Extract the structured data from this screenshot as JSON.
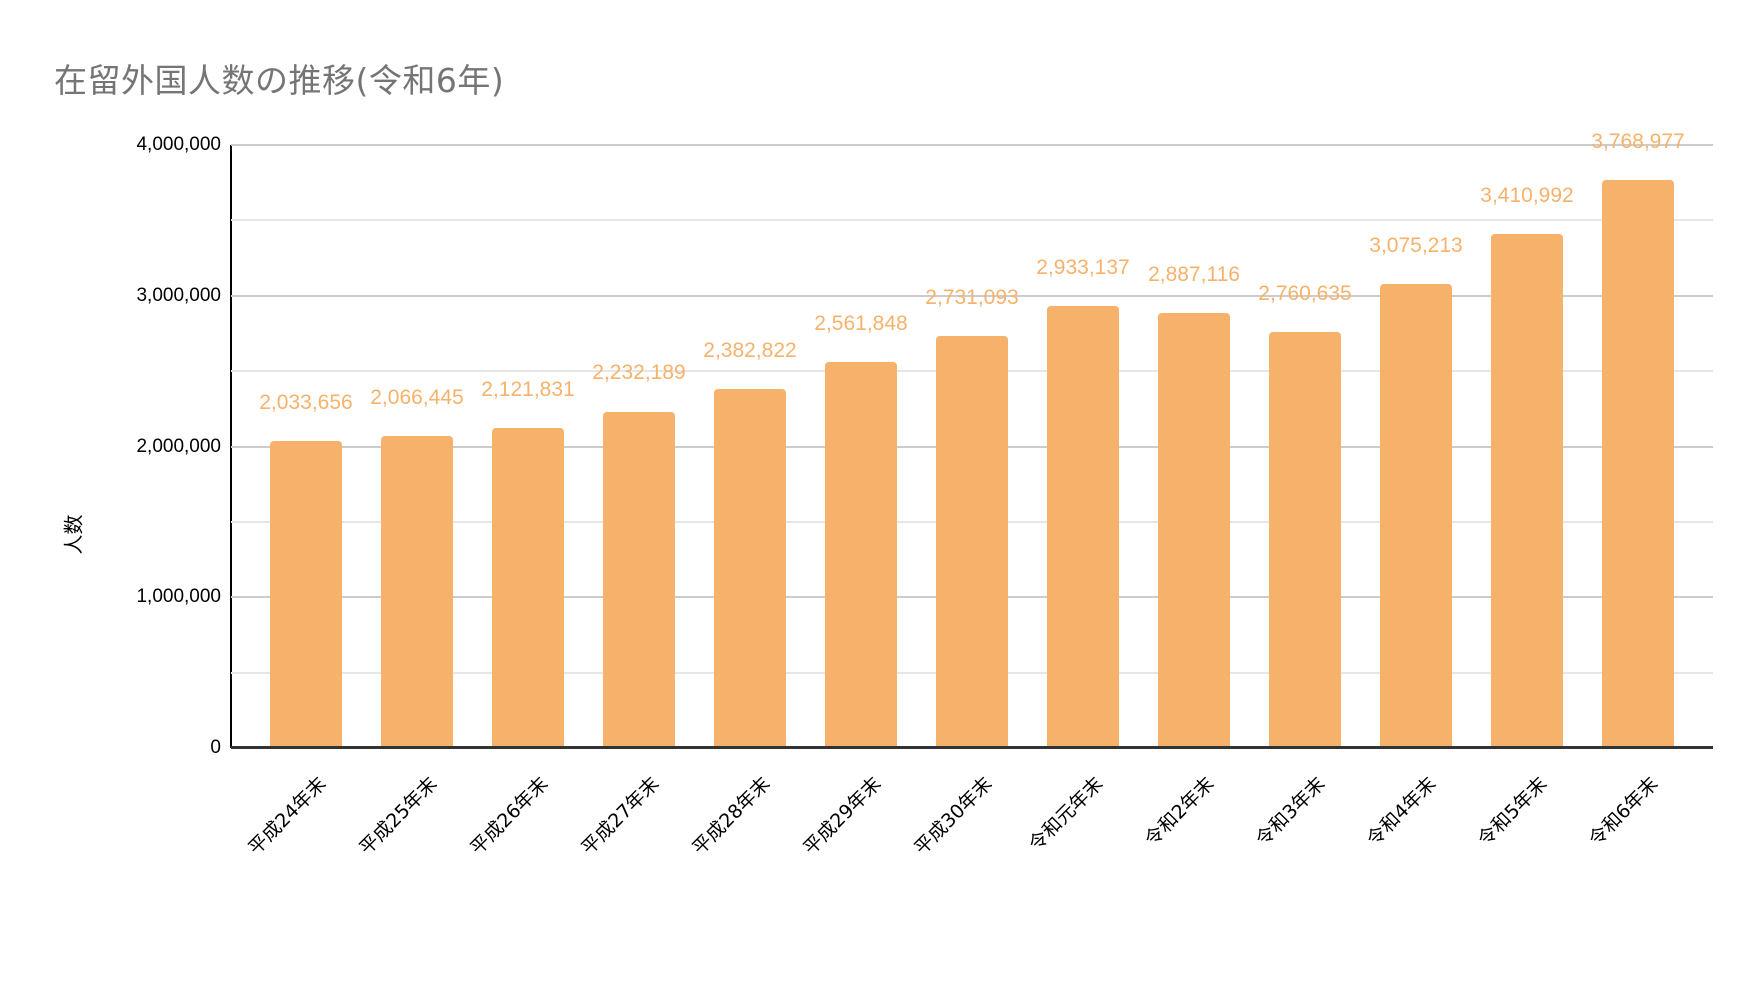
{
  "chart_data": {
    "type": "bar",
    "title": "在留外国人数の推移(令和6年)",
    "xlabel": "",
    "ylabel": "人数",
    "ylim": [
      0,
      4000000
    ],
    "yticks": [
      0,
      1000000,
      2000000,
      3000000,
      4000000
    ],
    "ytick_labels": [
      "0",
      "1,000,000",
      "2,000,000",
      "3,000,000",
      "4,000,000"
    ],
    "minor_gridlines": [
      500000,
      1500000,
      2500000,
      3500000
    ],
    "grid": true,
    "legend": null,
    "bar_color": "#f6b26b",
    "data_label_color": "#f6b26b",
    "categories": [
      "平成24年末",
      "平成25年末",
      "平成26年末",
      "平成27年末",
      "平成28年末",
      "平成29年末",
      "平成30年末",
      "令和元年末",
      "令和2年末",
      "令和3年末",
      "令和4年末",
      "令和5年末",
      "令和6年末"
    ],
    "values": [
      2033656,
      2066445,
      2121831,
      2232189,
      2382822,
      2561848,
      2731093,
      2933137,
      2887116,
      2760635,
      3075213,
      3410992,
      3768977
    ],
    "value_labels": [
      "2,033,656",
      "2,066,445",
      "2,121,831",
      "2,232,189",
      "2,382,822",
      "2,561,848",
      "2,731,093",
      "2,933,137",
      "2,887,116",
      "2,760,635",
      "3,075,213",
      "3,410,992",
      "3,768,977"
    ]
  }
}
